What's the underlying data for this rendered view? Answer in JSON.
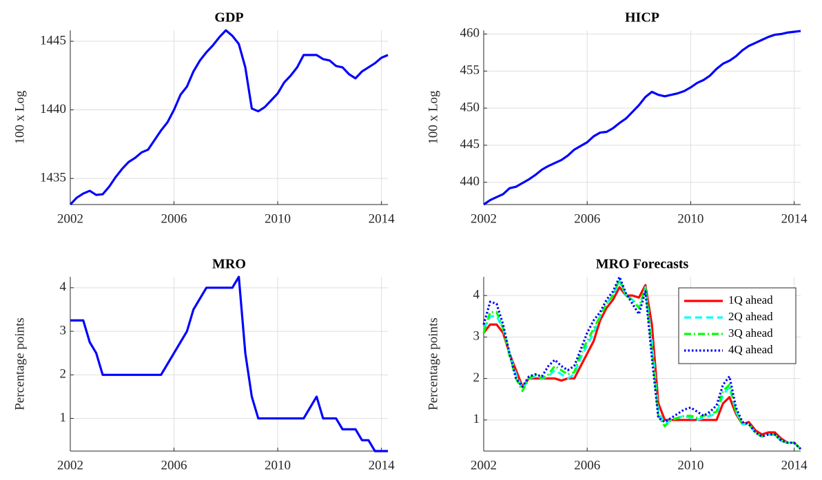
{
  "chart_data": [
    {
      "type": "line",
      "title": "GDP",
      "ylabel": "100 x Log",
      "x": [
        2002,
        2002.25,
        2002.5,
        2002.75,
        2003,
        2003.25,
        2003.5,
        2003.75,
        2004,
        2004.25,
        2004.5,
        2004.75,
        2005,
        2005.25,
        2005.5,
        2005.75,
        2006,
        2006.25,
        2006.5,
        2006.75,
        2007,
        2007.25,
        2007.5,
        2007.75,
        2008,
        2008.25,
        2008.5,
        2008.75,
        2009,
        2009.25,
        2009.5,
        2009.75,
        2010,
        2010.25,
        2010.5,
        2010.75,
        2011,
        2011.25,
        2011.5,
        2011.75,
        2012,
        2012.25,
        2012.5,
        2012.75,
        2013,
        2013.25,
        2013.5,
        2013.75,
        2014,
        2014.25
      ],
      "values": [
        1433.1,
        1433.6,
        1433.9,
        1434.1,
        1433.8,
        1433.85,
        1434.4,
        1435.1,
        1435.7,
        1436.2,
        1436.5,
        1436.9,
        1437.1,
        1437.8,
        1438.5,
        1439.1,
        1440.0,
        1441.1,
        1441.7,
        1442.8,
        1443.6,
        1444.2,
        1444.7,
        1445.3,
        1445.8,
        1445.4,
        1444.8,
        1443.1,
        1440.1,
        1439.9,
        1440.2,
        1440.7,
        1441.2,
        1442.0,
        1442.5,
        1443.1,
        1444.0,
        1444.0,
        1444.0,
        1443.7,
        1443.6,
        1443.2,
        1443.1,
        1442.6,
        1442.3,
        1442.8,
        1443.1,
        1443.4,
        1443.8,
        1444.0
      ],
      "color": "#0000ff",
      "xlim": [
        2002,
        2014.25
      ],
      "xticks": [
        2002,
        2006,
        2010,
        2014
      ],
      "ylim": [
        1433.1,
        1445.8
      ],
      "yticks": [
        1435,
        1440,
        1445
      ],
      "grid": true
    },
    {
      "type": "line",
      "title": "HICP",
      "ylabel": "100 x Log",
      "x": [
        2002,
        2002.25,
        2002.5,
        2002.75,
        2003,
        2003.25,
        2003.5,
        2003.75,
        2004,
        2004.25,
        2004.5,
        2004.75,
        2005,
        2005.25,
        2005.5,
        2005.75,
        2006,
        2006.25,
        2006.5,
        2006.75,
        2007,
        2007.25,
        2007.5,
        2007.75,
        2008,
        2008.25,
        2008.5,
        2008.75,
        2009,
        2009.25,
        2009.5,
        2009.75,
        2010,
        2010.25,
        2010.5,
        2010.75,
        2011,
        2011.25,
        2011.5,
        2011.75,
        2012,
        2012.25,
        2012.5,
        2012.75,
        2013,
        2013.25,
        2013.5,
        2013.75,
        2014,
        2014.25
      ],
      "values": [
        437.0,
        437.6,
        438.0,
        438.4,
        439.2,
        439.4,
        439.9,
        440.4,
        441.0,
        441.7,
        442.2,
        442.6,
        443.0,
        443.6,
        444.4,
        444.9,
        445.4,
        446.2,
        446.7,
        446.8,
        447.3,
        448.0,
        448.6,
        449.5,
        450.4,
        451.5,
        452.2,
        451.8,
        451.6,
        451.8,
        452.0,
        452.3,
        452.8,
        453.4,
        453.8,
        454.4,
        455.3,
        456.0,
        456.4,
        457.0,
        457.8,
        458.4,
        458.8,
        459.2,
        459.6,
        459.9,
        460.0,
        460.2,
        460.3,
        460.4
      ],
      "color": "#0000ff",
      "xlim": [
        2002,
        2014.25
      ],
      "xticks": [
        2002,
        2006,
        2010,
        2014
      ],
      "ylim": [
        437,
        460.5
      ],
      "yticks": [
        440,
        445,
        450,
        455,
        460
      ],
      "grid": true
    },
    {
      "type": "line",
      "title": "MRO",
      "ylabel": "Percentage points",
      "x": [
        2002,
        2002.25,
        2002.5,
        2002.75,
        2003,
        2003.25,
        2003.5,
        2003.75,
        2004,
        2004.25,
        2004.5,
        2004.75,
        2005,
        2005.25,
        2005.5,
        2005.75,
        2006,
        2006.25,
        2006.5,
        2006.75,
        2007,
        2007.25,
        2007.5,
        2007.75,
        2008,
        2008.25,
        2008.5,
        2008.75,
        2009,
        2009.25,
        2009.5,
        2009.75,
        2010,
        2010.25,
        2010.5,
        2010.75,
        2011,
        2011.25,
        2011.5,
        2011.75,
        2012,
        2012.25,
        2012.5,
        2012.75,
        2013,
        2013.25,
        2013.5,
        2013.75,
        2014,
        2014.25
      ],
      "values": [
        3.25,
        3.25,
        3.25,
        2.75,
        2.5,
        2.0,
        2.0,
        2.0,
        2.0,
        2.0,
        2.0,
        2.0,
        2.0,
        2.0,
        2.0,
        2.25,
        2.5,
        2.75,
        3.0,
        3.5,
        3.75,
        4.0,
        4.0,
        4.0,
        4.0,
        4.0,
        4.25,
        2.5,
        1.5,
        1.0,
        1.0,
        1.0,
        1.0,
        1.0,
        1.0,
        1.0,
        1.0,
        1.25,
        1.5,
        1.0,
        1.0,
        1.0,
        0.75,
        0.75,
        0.75,
        0.5,
        0.5,
        0.25,
        0.25,
        0.25
      ],
      "color": "#0000ff",
      "xlim": [
        2002,
        2014.25
      ],
      "xticks": [
        2002,
        2006,
        2010,
        2014
      ],
      "ylim": [
        0.25,
        4.25
      ],
      "yticks": [
        1,
        2,
        3,
        4
      ],
      "grid": true
    },
    {
      "type": "line",
      "title": "MRO Forecasts",
      "ylabel": "Percentage points",
      "x": [
        2002,
        2002.25,
        2002.5,
        2002.75,
        2003,
        2003.25,
        2003.5,
        2003.75,
        2004,
        2004.25,
        2004.5,
        2004.75,
        2005,
        2005.25,
        2005.5,
        2005.75,
        2006,
        2006.25,
        2006.5,
        2006.75,
        2007,
        2007.25,
        2007.5,
        2007.75,
        2008,
        2008.25,
        2008.5,
        2008.75,
        2009,
        2009.25,
        2009.5,
        2009.75,
        2010,
        2010.25,
        2010.5,
        2010.75,
        2011,
        2011.25,
        2011.5,
        2011.75,
        2012,
        2012.25,
        2012.5,
        2012.75,
        2013,
        2013.25,
        2013.5,
        2013.75,
        2014,
        2014.25
      ],
      "series": [
        {
          "name": "1Q ahead",
          "color": "#ff0000",
          "linestyle": "solid",
          "values": [
            3.1,
            3.3,
            3.3,
            3.1,
            2.6,
            2.2,
            1.8,
            2.0,
            2.0,
            2.0,
            2.0,
            2.0,
            1.95,
            2.0,
            2.0,
            2.3,
            2.6,
            2.9,
            3.4,
            3.7,
            3.9,
            4.2,
            4.0,
            4.0,
            3.95,
            4.25,
            3.3,
            1.4,
            1.0,
            1.0,
            1.0,
            1.0,
            1.0,
            1.0,
            1.0,
            1.0,
            1.0,
            1.4,
            1.55,
            1.15,
            0.9,
            0.95,
            0.75,
            0.65,
            0.7,
            0.7,
            0.55,
            0.45,
            0.45,
            0.3
          ]
        },
        {
          "name": "2Q ahead",
          "color": "#00ffff",
          "linestyle": "dashed",
          "values": [
            3.2,
            3.5,
            3.5,
            3.2,
            2.6,
            2.1,
            1.75,
            2.0,
            2.05,
            2.0,
            2.05,
            2.2,
            2.1,
            2.0,
            2.1,
            2.5,
            2.8,
            3.1,
            3.5,
            3.8,
            4.0,
            4.35,
            4.0,
            3.9,
            3.7,
            4.2,
            2.9,
            1.2,
            0.9,
            1.0,
            1.05,
            1.1,
            1.05,
            1.0,
            1.05,
            1.1,
            1.15,
            1.6,
            1.8,
            1.2,
            0.9,
            0.9,
            0.7,
            0.6,
            0.65,
            0.65,
            0.5,
            0.45,
            0.45,
            0.3
          ]
        },
        {
          "name": "3Q ahead",
          "color": "#00ff00",
          "linestyle": "dashdot",
          "values": [
            3.1,
            3.6,
            3.6,
            3.2,
            2.55,
            2.0,
            1.7,
            2.0,
            2.1,
            2.0,
            2.1,
            2.3,
            2.2,
            2.1,
            2.15,
            2.6,
            2.9,
            3.2,
            3.5,
            3.8,
            4.0,
            4.4,
            4.0,
            3.9,
            3.7,
            4.2,
            2.7,
            1.1,
            0.85,
            1.0,
            1.05,
            1.1,
            1.1,
            1.05,
            1.1,
            1.15,
            1.2,
            1.7,
            1.85,
            1.2,
            0.9,
            0.9,
            0.7,
            0.6,
            0.65,
            0.65,
            0.5,
            0.45,
            0.45,
            0.3
          ]
        },
        {
          "name": "4Q ahead",
          "color": "#0000ff",
          "linestyle": "dotted",
          "values": [
            3.3,
            3.85,
            3.8,
            3.3,
            2.6,
            2.0,
            1.8,
            2.05,
            2.1,
            2.05,
            2.3,
            2.45,
            2.3,
            2.2,
            2.3,
            2.7,
            3.1,
            3.4,
            3.6,
            3.9,
            4.1,
            4.45,
            4.05,
            3.8,
            3.55,
            4.1,
            2.5,
            1.05,
            0.95,
            1.05,
            1.15,
            1.25,
            1.3,
            1.2,
            1.1,
            1.2,
            1.35,
            1.85,
            2.05,
            1.3,
            0.95,
            0.9,
            0.7,
            0.6,
            0.65,
            0.65,
            0.5,
            0.45,
            0.45,
            0.3
          ]
        }
      ],
      "xlim": [
        2002,
        2014.25
      ],
      "xticks": [
        2002,
        2006,
        2010,
        2014
      ],
      "ylim": [
        0.25,
        4.45
      ],
      "yticks": [
        1,
        2,
        3,
        4
      ],
      "grid": true,
      "legend": "upper right"
    }
  ]
}
